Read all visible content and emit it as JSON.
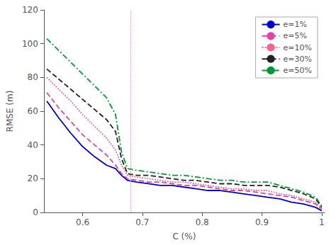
{
  "chart_data": {
    "type": "line",
    "xlabel": "C (%)",
    "ylabel": "RMSE (m)",
    "xlim": [
      0.535,
      1.005
    ],
    "ylim": [
      0,
      120
    ],
    "xticks": [
      0.6,
      0.7,
      0.8,
      0.9,
      1
    ],
    "yticks": [
      0,
      20,
      40,
      60,
      80,
      100,
      120
    ],
    "grid": false,
    "legend": "upper right",
    "x": [
      0.54,
      0.56,
      0.58,
      0.6,
      0.62,
      0.64,
      0.655,
      0.665,
      0.675,
      0.69,
      0.71,
      0.73,
      0.75,
      0.77,
      0.79,
      0.81,
      0.83,
      0.85,
      0.87,
      0.89,
      0.91,
      0.93,
      0.95,
      0.97,
      0.99,
      1.0
    ],
    "series": [
      {
        "name": "e=1%",
        "color": "#0000cc",
        "line_style": "solid",
        "values": [
          66,
          56,
          47,
          39,
          33,
          28,
          26,
          22,
          19,
          18,
          17,
          16,
          16,
          15,
          14,
          13,
          13,
          12,
          11,
          10,
          9,
          8,
          6,
          5,
          3,
          1
        ]
      },
      {
        "name": "e=5%",
        "color": "#dd44aa",
        "line_style": "dashed",
        "values": [
          71,
          62,
          54,
          46,
          40,
          34,
          28,
          23,
          20,
          19,
          18,
          18,
          17,
          16,
          16,
          15,
          14,
          13,
          13,
          12,
          11,
          10,
          9,
          7,
          5,
          2
        ]
      },
      {
        "name": "e=10%",
        "color": "#ee6688",
        "line_style": "dotted",
        "values": [
          80,
          73,
          66,
          58,
          51,
          44,
          37,
          28,
          22,
          21,
          20,
          19,
          18,
          18,
          17,
          16,
          15,
          14,
          14,
          13,
          13,
          11,
          10,
          8,
          6,
          2
        ]
      },
      {
        "name": "e=30%",
        "color": "#222222",
        "line_style": "dashed",
        "values": [
          85,
          79,
          73,
          67,
          61,
          55,
          48,
          32,
          23,
          22,
          22,
          21,
          20,
          19,
          19,
          18,
          17,
          17,
          16,
          16,
          16,
          15,
          13,
          11,
          8,
          3
        ]
      },
      {
        "name": "e=50%",
        "color": "#009933",
        "line_style": "dashdot",
        "values": [
          103,
          96,
          89,
          82,
          75,
          68,
          58,
          36,
          26,
          25,
          24,
          23,
          22,
          22,
          21,
          20,
          19,
          19,
          18,
          18,
          18,
          16,
          14,
          12,
          9,
          4
        ]
      }
    ],
    "vlines": [
      {
        "x": 0.675,
        "color": "#cc88cc",
        "line_style": "dotted"
      }
    ]
  }
}
